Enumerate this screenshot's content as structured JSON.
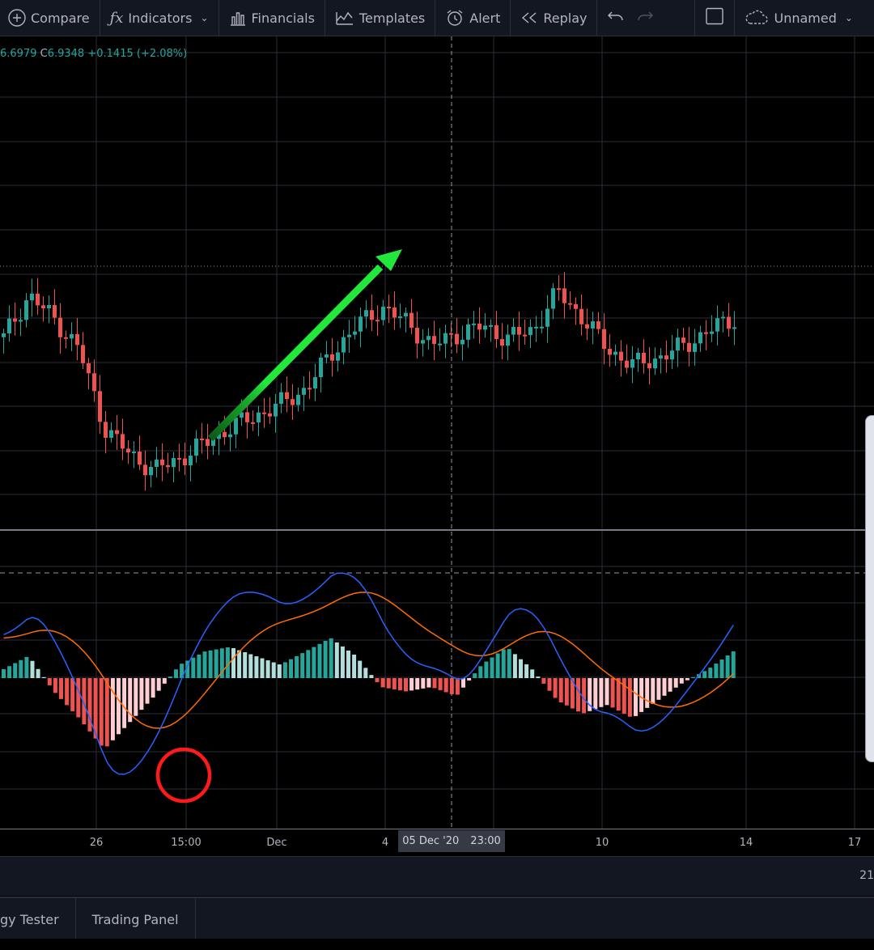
{
  "toolbar": {
    "compare_label": "Compare",
    "indicators_label": "Indicators",
    "financials_label": "Financials",
    "templates_label": "Templates",
    "alert_label": "Alert",
    "replay_label": "Replay",
    "layout_name": "Unnamed"
  },
  "legend": {
    "prev_value": "6.6979",
    "close_label": "C",
    "close_value": "6.9348",
    "change": "+0.1415 (+2.08%)"
  },
  "time_axis": {
    "ticks": [
      "26",
      "15:00",
      "Dec",
      "4",
      "10",
      "14",
      "17"
    ],
    "crosshair_date": "05 Dec '20",
    "crosshair_time": "23:00"
  },
  "bottom": {
    "right_text": "21",
    "tabs": [
      "gy Tester",
      "Trading Panel"
    ]
  },
  "colors": {
    "up": "#26a69a",
    "down": "#ef5350",
    "macd_line": "#2962ff",
    "signal_line": "#ff6d00",
    "hist_up_strong": "#26a69a",
    "hist_up_weak": "#b2dfdb",
    "hist_down_strong": "#ef5350",
    "hist_down_weak": "#ffcdd2",
    "annotation_arrow": "#22e83b",
    "annotation_circle": "#ff1a1a"
  },
  "chart_data": {
    "type": "candlestick-with-macd",
    "candles_close_trend": [
      6.75,
      6.86,
      6.8,
      6.72,
      6.52,
      6.45,
      6.41,
      6.44,
      6.48,
      6.52,
      6.55,
      6.58,
      6.62,
      6.71,
      6.78,
      6.83,
      6.79,
      6.73,
      6.76,
      6.78,
      6.75,
      6.77,
      6.87,
      6.8,
      6.72,
      6.68,
      6.7,
      6.73,
      6.77,
      6.8
    ],
    "macd_histogram_trend": [
      0.2,
      0.5,
      -0.3,
      -0.9,
      -1.6,
      -1.0,
      -0.4,
      0.3,
      0.6,
      0.7,
      0.5,
      0.3,
      0.6,
      0.9,
      0.5,
      -0.2,
      -0.3,
      -0.2,
      -0.4,
      0.3,
      0.7,
      0.2,
      -0.5,
      -0.8,
      -0.6,
      -0.9,
      -0.5,
      -0.1,
      0.2,
      0.6
    ]
  }
}
